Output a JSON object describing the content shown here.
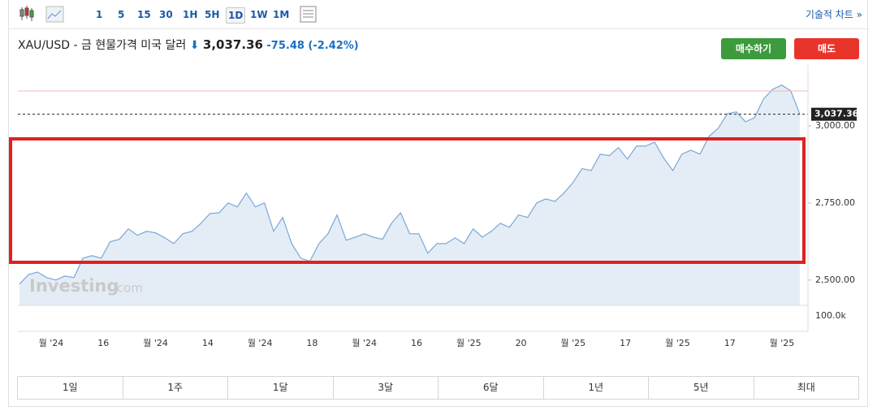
{
  "toolbar": {
    "intervals": [
      "1",
      "5",
      "15",
      "30",
      "1H",
      "5H",
      "1D",
      "1W",
      "1M"
    ],
    "selected": "1D",
    "right": "기술적 차트 »"
  },
  "header": {
    "symbol": "XAU/USD - 금 현물가격 미국 달러",
    "price": "3,037.36",
    "change": "-75.48",
    "change_pct": "(-2.42%)"
  },
  "buttons": {
    "buy": "매수하기",
    "sell": "매도"
  },
  "watermark": {
    "brand": "Investing",
    "suffix": ".com"
  },
  "volume_tick": "100.0k",
  "ranges": [
    "1일",
    "1주",
    "1달",
    "3달",
    "6달",
    "1년",
    "5년",
    "최대"
  ],
  "chart_data": {
    "type": "line",
    "values": [
      2487,
      2518,
      2526,
      2508,
      2500,
      2513,
      2508,
      2571,
      2579,
      2571,
      2624,
      2632,
      2666,
      2645,
      2658,
      2653,
      2637,
      2618,
      2650,
      2658,
      2684,
      2716,
      2718,
      2750,
      2737,
      2782,
      2737,
      2750,
      2658,
      2703,
      2618,
      2571,
      2561,
      2618,
      2650,
      2711,
      2629,
      2639,
      2650,
      2639,
      2632,
      2684,
      2718,
      2650,
      2650,
      2587,
      2618,
      2618,
      2637,
      2618,
      2666,
      2639,
      2658,
      2684,
      2671,
      2711,
      2703,
      2750,
      2763,
      2755,
      2782,
      2816,
      2861,
      2855,
      2908,
      2903,
      2929,
      2892,
      2934,
      2934,
      2947,
      2895,
      2855,
      2908,
      2921,
      2908,
      2966,
      2992,
      3039,
      3045,
      3013,
      3026,
      3087,
      3118,
      3132,
      3113,
      3037.36
    ],
    "last_label": "3,037.36",
    "color": "#7aa7d6",
    "ylim": [
      2418,
      3197
    ],
    "yticks": [
      {
        "value": 2500,
        "label": "2,500.00"
      },
      {
        "value": 2750,
        "label": "2,750.00"
      },
      {
        "value": 3000,
        "label": "3,000.00"
      }
    ],
    "x_tick_labels": [
      "월 '24",
      "16",
      "월 '24",
      "14",
      "월 '24",
      "18",
      "월 '24",
      "16",
      "월 '25",
      "20",
      "월 '25",
      "17",
      "월 '25",
      "17",
      "월 '25"
    ]
  }
}
